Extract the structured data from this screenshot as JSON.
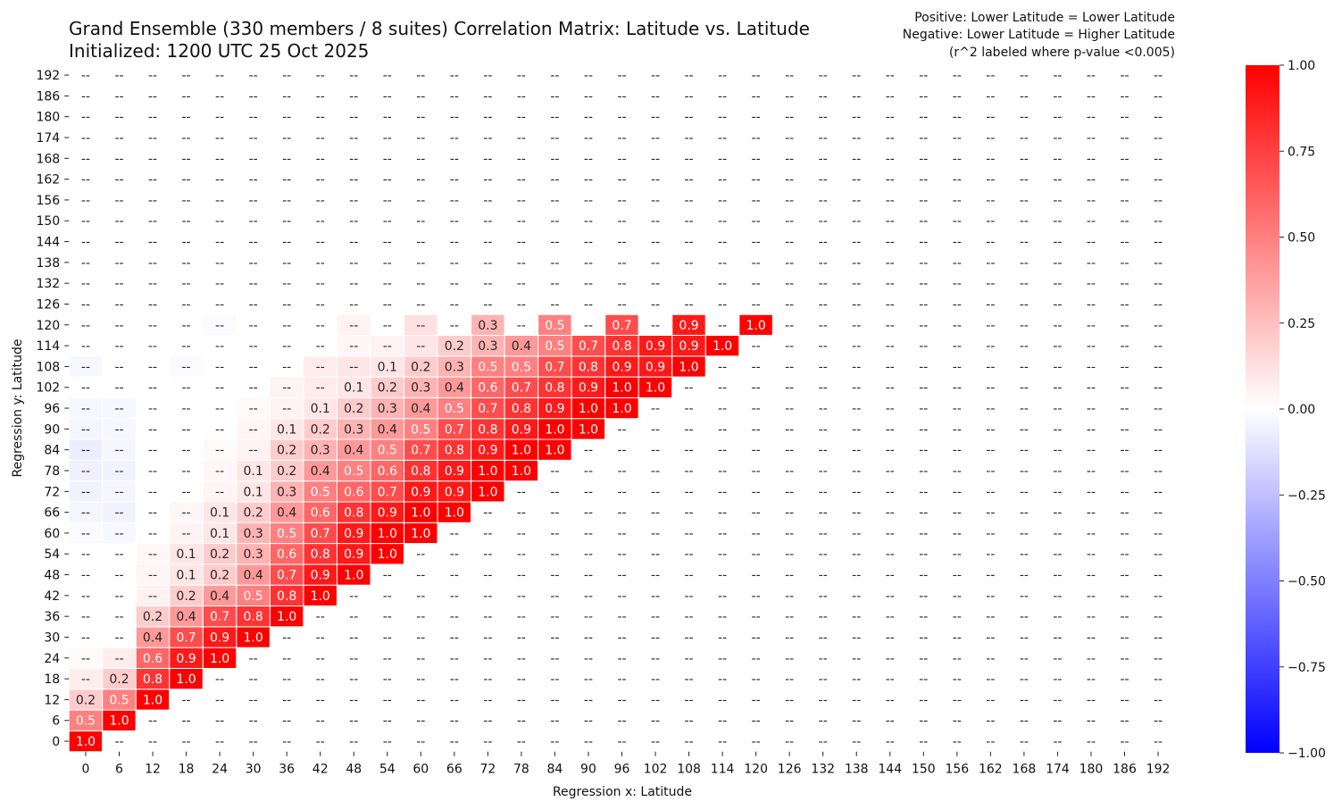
{
  "chart_data": {
    "type": "heatmap",
    "title": "Grand Ensemble (330 members / 8 suites) Correlation Matrix: Latitude vs. Latitude",
    "subtitle": "Initialized: 1200 UTC 25 Oct 2025",
    "annotations": [
      "Positive: Lower Latitude = Lower Latitude",
      "Negative: Lower Latitude = Higher Latitude",
      "(r^2 labeled where p-value <0.005)"
    ],
    "xlabel": "Regression x: Latitude",
    "ylabel": "Regression y: Latitude",
    "x_ticks": [
      0,
      6,
      12,
      18,
      24,
      30,
      36,
      42,
      48,
      54,
      60,
      66,
      72,
      78,
      84,
      90,
      96,
      102,
      108,
      114,
      120,
      126,
      132,
      138,
      144,
      150,
      156,
      162,
      168,
      174,
      180,
      186,
      192
    ],
    "y_ticks": [
      0,
      6,
      12,
      18,
      24,
      30,
      36,
      42,
      48,
      54,
      60,
      66,
      72,
      78,
      84,
      90,
      96,
      102,
      108,
      114,
      120,
      126,
      132,
      138,
      144,
      150,
      156,
      162,
      168,
      174,
      180,
      186,
      192
    ],
    "empty_label": "--",
    "colorbar": {
      "range": [
        -1,
        1
      ],
      "ticks": [
        "1.00",
        "0.75",
        "0.50",
        "0.25",
        "0.00",
        "−0.25",
        "−0.50",
        "−0.75",
        "−1.00"
      ],
      "colormap": "bwr",
      "low": "#0000ff",
      "mid": "#ffffff",
      "high": "#ff0000"
    },
    "labeled_cells": {
      "120": {
        "72": 0.3,
        "84": 0.5,
        "96": 0.7,
        "108": 0.9,
        "120": 1.0
      },
      "114": {
        "66": 0.2,
        "72": 0.3,
        "78": 0.4,
        "84": 0.5,
        "90": 0.7,
        "96": 0.8,
        "102": 0.9,
        "108": 0.9,
        "114": 1.0
      },
      "108": {
        "54": 0.1,
        "60": 0.2,
        "66": 0.3,
        "72": 0.5,
        "78": 0.5,
        "84": 0.7,
        "90": 0.8,
        "96": 0.9,
        "102": 0.9,
        "108": 1.0
      },
      "102": {
        "48": 0.1,
        "54": 0.2,
        "60": 0.3,
        "66": 0.4,
        "72": 0.6,
        "78": 0.7,
        "84": 0.8,
        "90": 0.9,
        "96": 1.0,
        "102": 1.0
      },
      "96": {
        "42": 0.1,
        "48": 0.2,
        "54": 0.3,
        "60": 0.4,
        "66": 0.5,
        "72": 0.7,
        "78": 0.8,
        "84": 0.9,
        "90": 1.0,
        "96": 1.0
      },
      "90": {
        "36": 0.1,
        "42": 0.2,
        "48": 0.3,
        "54": 0.4,
        "60": 0.5,
        "66": 0.7,
        "72": 0.8,
        "78": 0.9,
        "84": 1.0,
        "90": 1.0
      },
      "84": {
        "36": 0.2,
        "42": 0.3,
        "48": 0.4,
        "54": 0.5,
        "60": 0.7,
        "66": 0.8,
        "72": 0.9,
        "78": 1.0,
        "84": 1.0
      },
      "78": {
        "30": 0.1,
        "36": 0.2,
        "42": 0.4,
        "48": 0.5,
        "54": 0.6,
        "60": 0.8,
        "66": 0.9,
        "72": 1.0,
        "78": 1.0
      },
      "72": {
        "30": 0.1,
        "36": 0.3,
        "42": 0.5,
        "48": 0.6,
        "54": 0.7,
        "60": 0.9,
        "66": 0.9,
        "72": 1.0
      },
      "66": {
        "24": 0.1,
        "30": 0.2,
        "36": 0.4,
        "42": 0.6,
        "48": 0.8,
        "54": 0.9,
        "60": 1.0,
        "66": 1.0
      },
      "60": {
        "24": 0.1,
        "30": 0.3,
        "36": 0.5,
        "42": 0.7,
        "48": 0.9,
        "54": 1.0,
        "60": 1.0
      },
      "54": {
        "18": 0.1,
        "24": 0.2,
        "30": 0.3,
        "36": 0.6,
        "42": 0.8,
        "48": 0.9,
        "54": 1.0
      },
      "48": {
        "18": 0.1,
        "24": 0.2,
        "30": 0.4,
        "36": 0.7,
        "42": 0.9,
        "48": 1.0
      },
      "42": {
        "18": 0.2,
        "24": 0.4,
        "30": 0.5,
        "36": 0.8,
        "42": 1.0
      },
      "36": {
        "12": 0.2,
        "18": 0.4,
        "24": 0.7,
        "30": 0.8,
        "36": 1.0
      },
      "30": {
        "12": 0.4,
        "18": 0.7,
        "24": 0.9,
        "30": 1.0
      },
      "24": {
        "12": 0.6,
        "18": 0.9,
        "24": 1.0
      },
      "18": {
        "6": 0.2,
        "12": 0.8,
        "18": 1.0
      },
      "12": {
        "0": 0.2,
        "6": 0.5,
        "12": 1.0
      },
      "6": {
        "0": 0.5,
        "6": 1.0
      },
      "0": {
        "0": 1.0
      }
    },
    "unlabeled_tints": {
      "120": {
        "24": -0.02,
        "48": 0.05,
        "60": 0.12
      },
      "114": {
        "48": 0.03,
        "54": 0.05,
        "60": 0.1
      },
      "108": {
        "0": -0.03,
        "18": -0.02,
        "42": 0.08,
        "48": 0.1
      },
      "102": {
        "36": 0.05,
        "42": 0.08
      },
      "96": {
        "0": -0.03,
        "6": -0.03,
        "30": 0.02,
        "36": 0.05
      },
      "90": {
        "0": -0.04,
        "6": -0.03,
        "30": 0.04
      },
      "84": {
        "0": -0.07,
        "6": -0.04,
        "24": 0.02,
        "30": 0.05
      },
      "78": {
        "0": -0.06,
        "6": -0.05,
        "24": 0.03
      },
      "72": {
        "0": -0.05,
        "6": -0.04,
        "24": 0.04
      },
      "66": {
        "0": -0.04,
        "6": -0.05,
        "18": 0.03
      },
      "60": {
        "0": -0.02,
        "6": -0.03,
        "18": 0.05
      },
      "54": {
        "12": 0.03
      },
      "48": {
        "12": 0.04
      },
      "42": {
        "12": 0.05
      },
      "24": {
        "0": 0.02,
        "6": 0.07
      },
      "18": {
        "0": 0.07
      }
    }
  }
}
